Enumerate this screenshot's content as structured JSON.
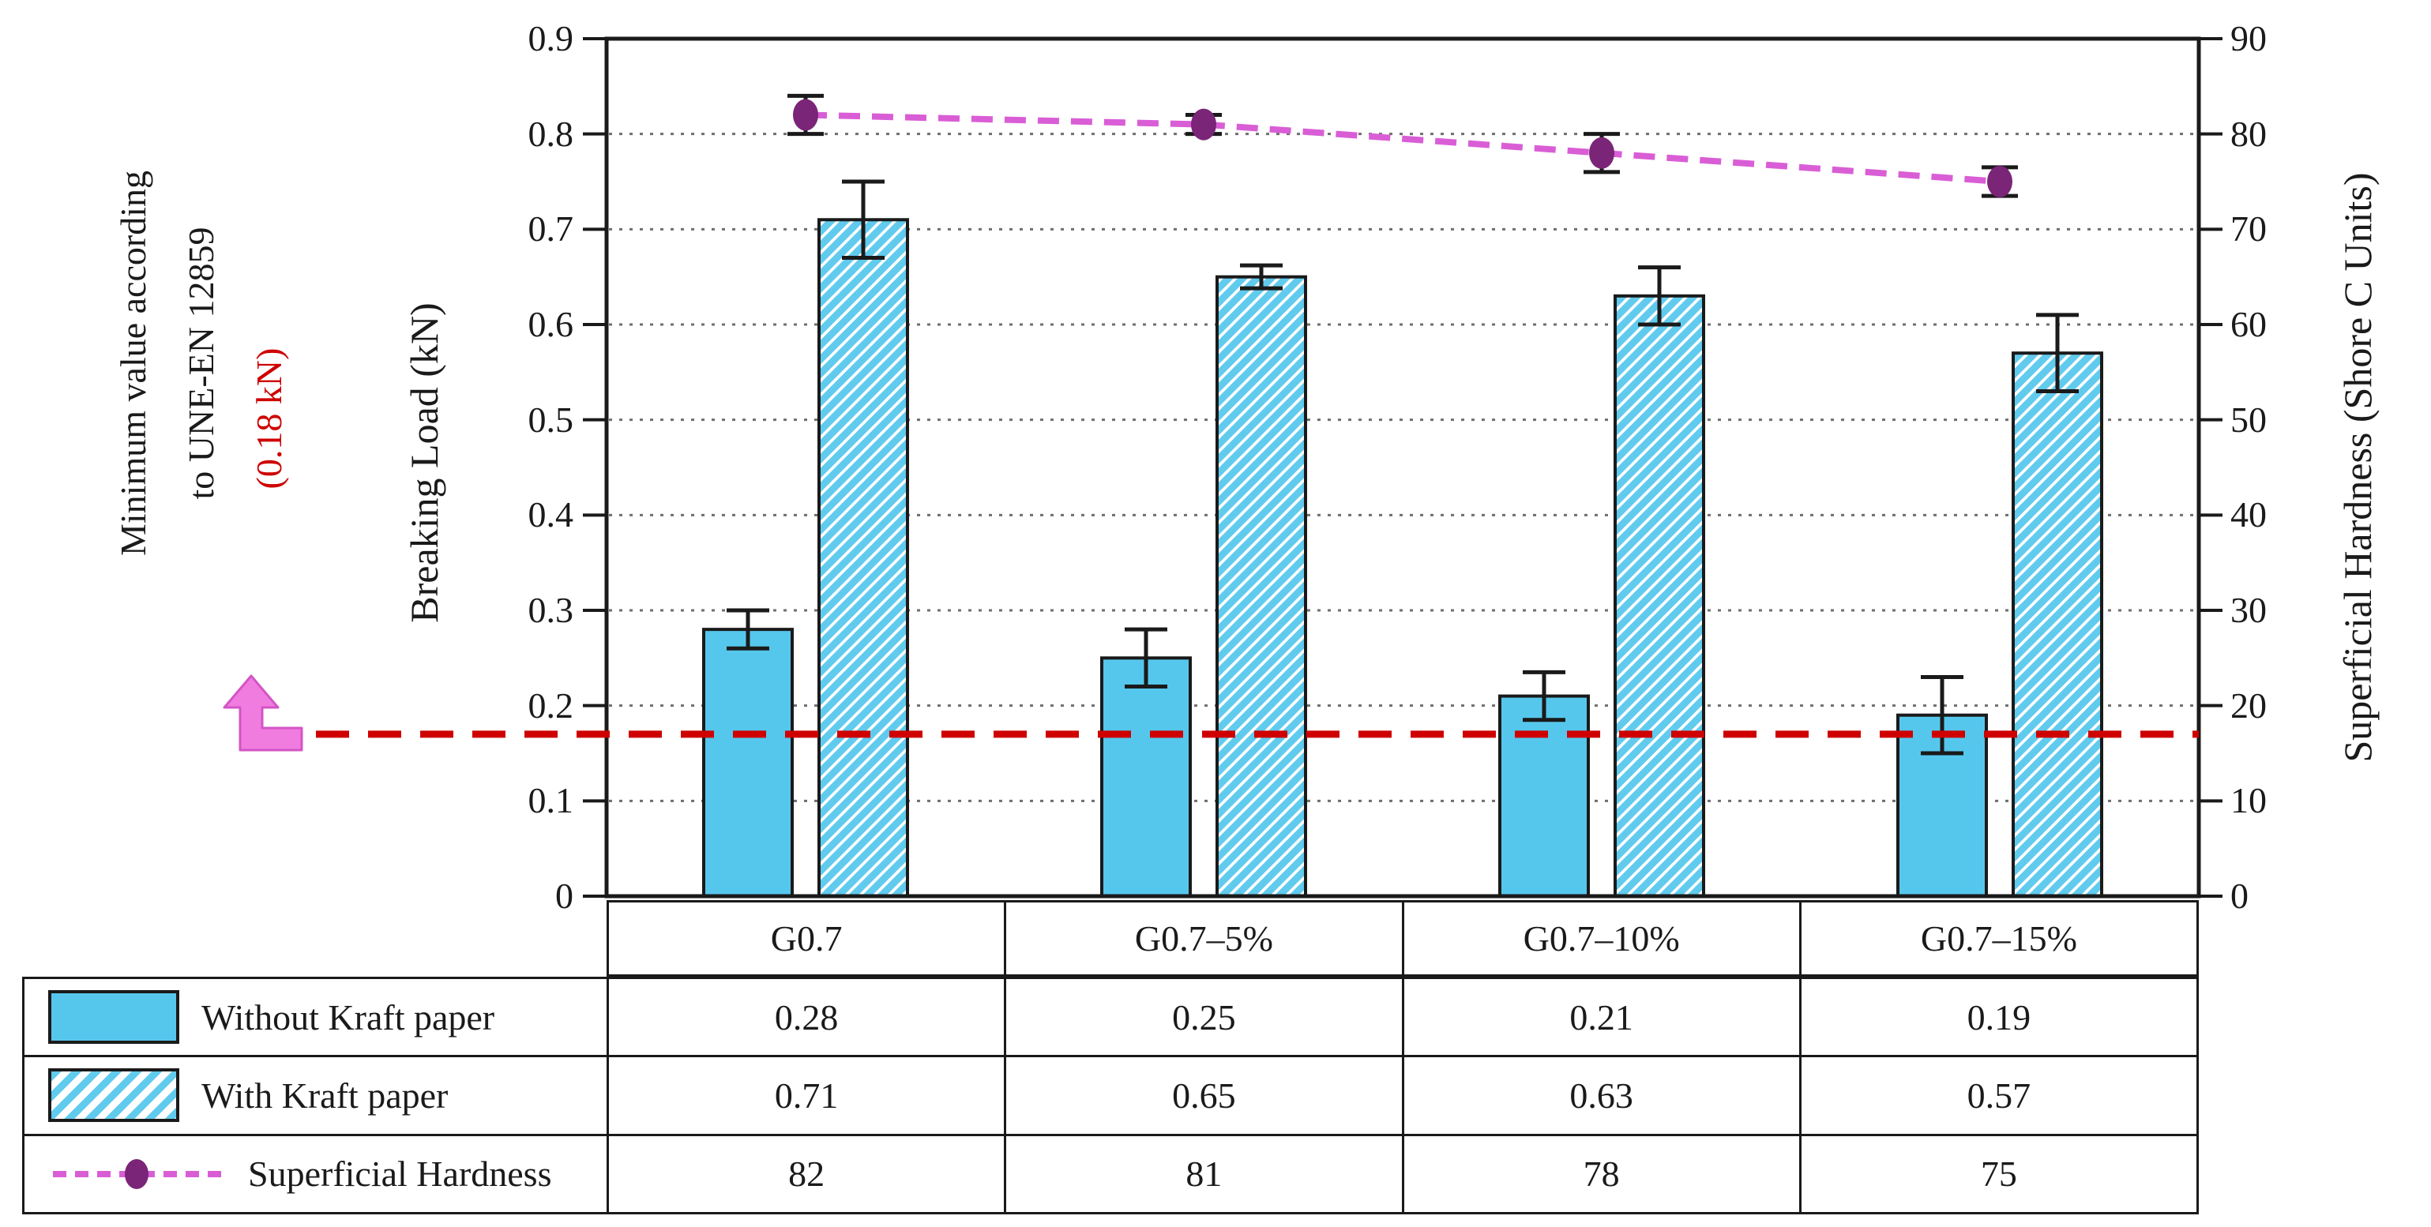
{
  "figure": {
    "annotation": {
      "line1": "Minimum value according",
      "line2": "to UNE-EN 12859",
      "line3": "(0.18 kN)"
    },
    "left_axis": {
      "title": "Breaking Load (kN)",
      "ticks": [
        "0",
        "0.1",
        "0.2",
        "0.3",
        "0.4",
        "0.5",
        "0.6",
        "0.7",
        "0.8",
        "0.9"
      ]
    },
    "right_axis": {
      "title": "Superficial Hardness (Shore C Units)",
      "ticks": [
        "0",
        "10",
        "20",
        "30",
        "40",
        "50",
        "60",
        "70",
        "80",
        "90"
      ]
    }
  },
  "chart_data": {
    "type": "bar+line",
    "categories": [
      "G0.7",
      "G0.7–5%",
      "G0.7–10%",
      "G0.7–15%"
    ],
    "series": [
      {
        "name": "Without Kraft paper",
        "type": "bar",
        "pattern": "solid",
        "axis": "left",
        "values": [
          0.28,
          0.25,
          0.21,
          0.19
        ],
        "errors": [
          0.02,
          0.03,
          0.025,
          0.04
        ]
      },
      {
        "name": "With Kraft paper",
        "type": "bar",
        "pattern": "hatched",
        "axis": "left",
        "values": [
          0.71,
          0.65,
          0.63,
          0.57
        ],
        "errors": [
          0.04,
          0.012,
          0.03,
          0.04
        ]
      },
      {
        "name": "Superficial Hardness",
        "type": "line",
        "style": "dashed",
        "marker": "circle",
        "axis": "right",
        "values": [
          82,
          81,
          78,
          75
        ],
        "errors": [
          2,
          1,
          2,
          1.5
        ]
      }
    ],
    "left_ylim": [
      0,
      0.9
    ],
    "right_ylim": [
      0,
      90
    ],
    "grid": "dotted-horizontal-0.1-steps",
    "reference_line": {
      "value": 0.18,
      "drawn_at": 0.17,
      "axis": "left",
      "meaning": "Minimum value according to UNE-EN 12859 (0.18 kN)"
    }
  },
  "colors": {
    "bar_blue": "#56c7ec",
    "hatch_blue": "#61cbee",
    "series_line_magenta": "#d95ed6",
    "marker_purple": "#7a2577",
    "reference_red": "#ce0000",
    "grid_gray": "#6f6f6f",
    "ink": "#1a1a1a",
    "arrow_pink_fill": "#f07ce0",
    "arrow_pink_stroke": "#d355c5"
  }
}
